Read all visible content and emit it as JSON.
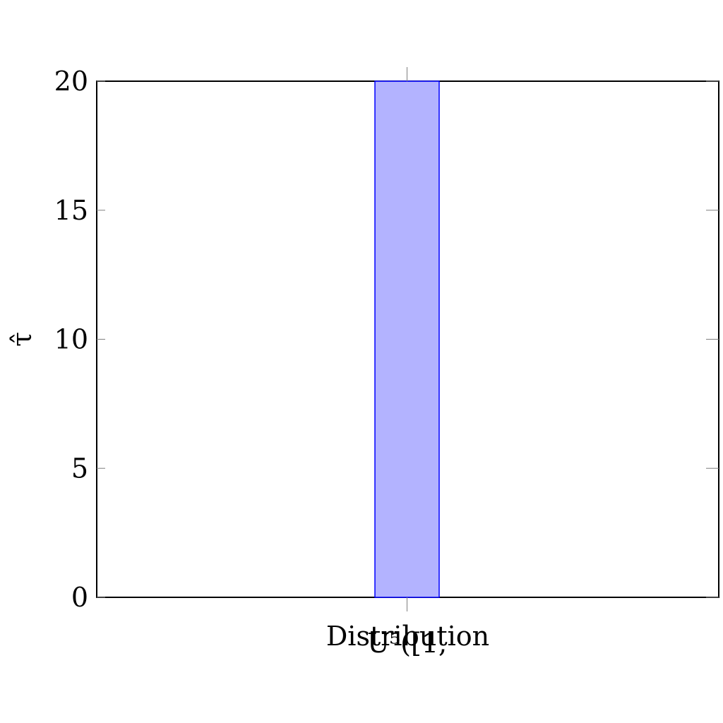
{
  "chart_data": {
    "type": "bar",
    "categories": [
      "U⁵([1,"
    ],
    "values": [
      20
    ],
    "title": "",
    "xlabel": "Distribution",
    "ylabel": "τ̂",
    "ylim": [
      0,
      20
    ],
    "yticks": [
      "0",
      "5",
      "10",
      "15",
      "20"
    ],
    "grid": false,
    "legend": "none",
    "colors": {
      "bar_fill": "#b3b3ff",
      "bar_stroke": "#0000ff",
      "axis": "#000000",
      "tick": "#7f7f7f"
    }
  }
}
